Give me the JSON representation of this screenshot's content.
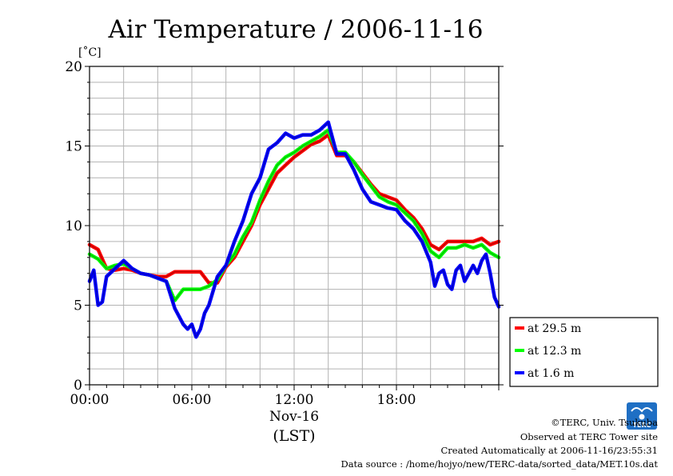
{
  "chart_data": {
    "type": "line",
    "title": "Air Temperature / 2006-11-16",
    "ylabel": "[˚C]",
    "xlabel_date": "Nov-16",
    "xlabel_tz": "(LST)",
    "ylim": [
      0,
      20
    ],
    "xlim": [
      0,
      24
    ],
    "yticks": [
      0,
      5,
      10,
      15,
      20
    ],
    "ytick_labels": [
      "0",
      "5",
      "10",
      "15",
      "20"
    ],
    "xticks": [
      0,
      6,
      12,
      18
    ],
    "xtick_labels": [
      "00:00",
      "06:00",
      "12:00",
      "18:00"
    ],
    "grid": true,
    "legend_position": "right",
    "series": [
      {
        "name": "at 29.5 m",
        "color": "#ff0000",
        "x": [
          0,
          0.5,
          1,
          1.5,
          2,
          2.5,
          3,
          3.5,
          4,
          4.5,
          5,
          5.5,
          6,
          6.5,
          7,
          7.5,
          8,
          8.5,
          9,
          9.5,
          10,
          10.5,
          11,
          11.5,
          12,
          12.5,
          13,
          13.5,
          14,
          14.5,
          15,
          15.5,
          16,
          16.5,
          17,
          17.5,
          18,
          18.5,
          19,
          19.5,
          20,
          20.5,
          21,
          21.5,
          22,
          22.5,
          23,
          23.5,
          24
        ],
        "y": [
          8.8,
          8.5,
          7.3,
          7.2,
          7.3,
          7.2,
          7.0,
          6.9,
          6.8,
          6.8,
          7.1,
          7.1,
          7.1,
          7.1,
          6.4,
          6.4,
          7.4,
          8.0,
          9.0,
          10.0,
          11.3,
          12.3,
          13.3,
          13.8,
          14.3,
          14.7,
          15.1,
          15.3,
          15.7,
          14.4,
          14.4,
          14.0,
          13.3,
          12.6,
          12.0,
          11.8,
          11.6,
          11.0,
          10.5,
          9.8,
          8.8,
          8.5,
          9.0,
          9.0,
          9.0,
          9.0,
          9.2,
          8.8,
          9.0
        ]
      },
      {
        "name": "at 12.3 m",
        "color": "#00ff00",
        "x": [
          0,
          0.5,
          1,
          1.5,
          2,
          2.5,
          3,
          3.5,
          4,
          4.5,
          5,
          5.5,
          6,
          6.5,
          7,
          7.5,
          8,
          8.5,
          9,
          9.5,
          10,
          10.5,
          11,
          11.5,
          12,
          12.5,
          13,
          13.5,
          14,
          14.5,
          15,
          15.5,
          16,
          16.5,
          17,
          17.5,
          18,
          18.5,
          19,
          19.5,
          20,
          20.5,
          21,
          21.5,
          22,
          22.5,
          23,
          23.5,
          24
        ],
        "y": [
          8.2,
          7.9,
          7.3,
          7.5,
          7.6,
          7.3,
          7.0,
          6.9,
          6.7,
          6.5,
          5.3,
          6.0,
          6.0,
          6.0,
          6.2,
          6.6,
          7.5,
          8.2,
          9.3,
          10.2,
          11.6,
          12.8,
          13.8,
          14.3,
          14.6,
          15.0,
          15.3,
          15.6,
          16.0,
          14.6,
          14.6,
          14.0,
          13.2,
          12.5,
          11.8,
          11.5,
          11.3,
          10.8,
          10.3,
          9.5,
          8.4,
          8.0,
          8.6,
          8.6,
          8.8,
          8.6,
          8.8,
          8.3,
          8.0
        ]
      },
      {
        "name": "at 1.6 m",
        "color": "#0000ff",
        "x": [
          0,
          0.25,
          0.5,
          0.75,
          1,
          1.5,
          2,
          2.5,
          3,
          3.5,
          4,
          4.5,
          5,
          5.5,
          5.75,
          6,
          6.25,
          6.5,
          6.75,
          7,
          7.5,
          8,
          8.5,
          9,
          9.5,
          10,
          10.5,
          11,
          11.5,
          12,
          12.5,
          13,
          13.5,
          14,
          14.5,
          15,
          15.5,
          16,
          16.5,
          17,
          17.5,
          18,
          18.5,
          19,
          19.5,
          20,
          20.25,
          20.5,
          20.75,
          21,
          21.25,
          21.5,
          21.75,
          22,
          22.25,
          22.5,
          22.75,
          23,
          23.25,
          23.5,
          23.75,
          24
        ],
        "y": [
          6.5,
          7.2,
          5.0,
          5.2,
          6.8,
          7.3,
          7.8,
          7.3,
          7.0,
          6.9,
          6.7,
          6.5,
          4.8,
          3.8,
          3.5,
          3.8,
          3.0,
          3.5,
          4.5,
          5.0,
          6.8,
          7.5,
          9.0,
          10.3,
          12.0,
          13.0,
          14.8,
          15.2,
          15.8,
          15.5,
          15.7,
          15.7,
          16.0,
          16.5,
          14.5,
          14.5,
          13.5,
          12.3,
          11.5,
          11.3,
          11.1,
          11.0,
          10.3,
          9.8,
          9.0,
          7.7,
          6.2,
          7.0,
          7.2,
          6.3,
          6.0,
          7.2,
          7.5,
          6.5,
          7.0,
          7.5,
          7.0,
          7.8,
          8.2,
          7.0,
          5.5,
          4.9
        ]
      }
    ]
  },
  "credits": {
    "copyright": "©TERC, Univ. Tsukuba",
    "observed": "Observed at TERC Tower site",
    "created": "Created Automatically at 2006-11-16/23:55:31",
    "source": "Data source : /home/hojyo/new/TERC-data/sorted_data/MET.10s.dat",
    "logo_text": "TERC"
  },
  "colors": {
    "grid": "#b3b3b3",
    "logo": "#1f6fc4"
  }
}
